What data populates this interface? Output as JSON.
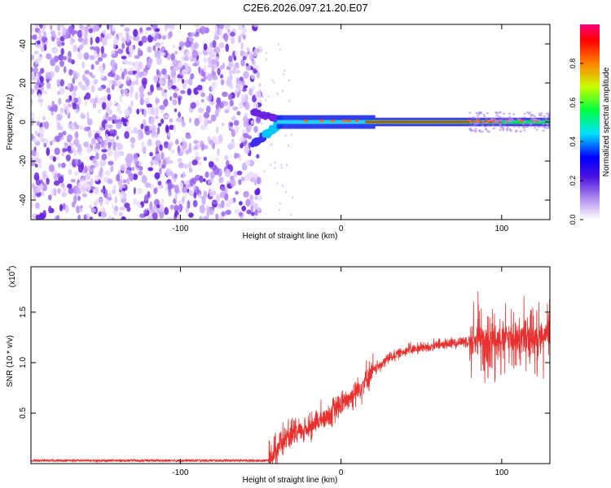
{
  "title": "C2E6.2026.097.21.20.E07",
  "chart_data": [
    {
      "type": "heatmap",
      "xlabel": "Height of straight line (km)",
      "ylabel": "Frequency (Hz)",
      "xlim": [
        -193,
        130
      ],
      "ylim": [
        -50,
        50
      ],
      "xticks": [
        -100,
        0,
        100
      ],
      "yticks": [
        -40,
        -20,
        0,
        20,
        40
      ],
      "colorbar": {
        "label": "Normalized spectral amplitude",
        "ticks": [
          0.0,
          0.2,
          0.4,
          0.6,
          0.8
        ],
        "range": [
          0,
          1
        ]
      },
      "features": {
        "noise_region_x": [
          -193,
          -50
        ],
        "signal_start_x": -55,
        "ridge_frequency_hz": 0,
        "early_ridge_offset_hz": -12
      }
    },
    {
      "type": "line",
      "xlabel": "Height of straight line (km)",
      "ylabel": "SNR (10 * v/v)",
      "multiplier": "(x10",
      "multiplier_exp": "4",
      "xlim": [
        -193,
        130
      ],
      "ylim": [
        0,
        1.95
      ],
      "xticks": [
        -100,
        0,
        100
      ],
      "yticks": [
        0.5,
        1.0,
        1.5
      ],
      "ytick_labels": [
        "0.5",
        "1.0",
        "1.5"
      ],
      "color": "#e8312f",
      "trend_x": [
        -193,
        -45,
        -42,
        -38,
        -30,
        -20,
        -10,
        0,
        10,
        20,
        30,
        40,
        60,
        80,
        100,
        115,
        130
      ],
      "trend_y": [
        0.03,
        0.03,
        0.1,
        0.2,
        0.28,
        0.36,
        0.46,
        0.58,
        0.72,
        0.92,
        1.05,
        1.12,
        1.17,
        1.22,
        1.25,
        1.25,
        1.28
      ]
    }
  ]
}
